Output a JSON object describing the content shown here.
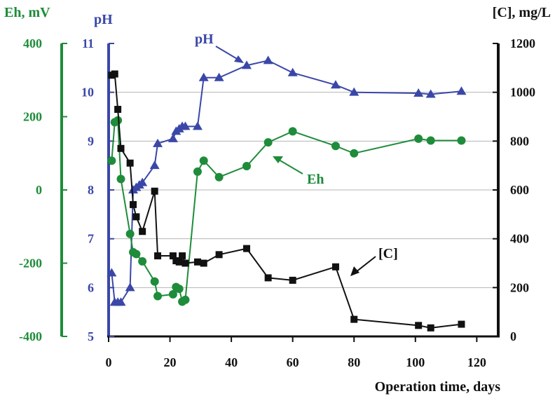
{
  "colors": {
    "ph": "#3a47a8",
    "eh": "#1e8c3a",
    "c": "#111111",
    "grid": "#b5b5b5"
  },
  "chart_data": {
    "type": "line",
    "title": "",
    "xlabel": "Operation time, days",
    "xlim": [
      0,
      127
    ],
    "x_ticks": [
      "0",
      "20",
      "40",
      "60",
      "80",
      "100",
      "120"
    ],
    "x_tick_values": [
      0,
      20,
      40,
      60,
      80,
      100,
      120
    ],
    "grid": "horizontal at right-axis ticks",
    "axes": {
      "ph": {
        "label": "pH",
        "lim": [
          5,
          11
        ],
        "ticks": [
          "5",
          "6",
          "7",
          "8",
          "9",
          "10",
          "11"
        ],
        "tick_values": [
          5,
          6,
          7,
          8,
          9,
          10,
          11
        ]
      },
      "eh": {
        "label": "Eh, mV",
        "lim": [
          -400,
          400
        ],
        "ticks": [
          "-400",
          "-200",
          "0",
          "200",
          "400"
        ],
        "tick_values": [
          -400,
          -200,
          0,
          200,
          400
        ]
      },
      "c": {
        "label": "[C], mg/L",
        "lim": [
          0,
          1200
        ],
        "ticks": [
          "0",
          "200",
          "400",
          "600",
          "800",
          "1000",
          "1200"
        ],
        "tick_values": [
          0,
          200,
          400,
          600,
          800,
          1000,
          1200
        ]
      }
    },
    "series": [
      {
        "name": "pH",
        "axis": "ph",
        "marker": "triangle",
        "color": "#3a47a8",
        "x": [
          1,
          2,
          3,
          4,
          7,
          8,
          9,
          10,
          11,
          15,
          16,
          21,
          22,
          23,
          24,
          25,
          29,
          31,
          36,
          45,
          52,
          60,
          74,
          80,
          101,
          105,
          115
        ],
        "y": [
          6.3,
          5.7,
          5.7,
          5.7,
          6.0,
          8.0,
          8.05,
          8.1,
          8.15,
          8.5,
          8.95,
          9.05,
          9.2,
          9.25,
          9.3,
          9.3,
          9.3,
          10.3,
          10.3,
          10.55,
          10.65,
          10.4,
          10.15,
          10.0,
          9.98,
          9.96,
          10.02
        ]
      },
      {
        "name": "Eh",
        "axis": "eh",
        "marker": "circle",
        "color": "#1e8c3a",
        "x": [
          1,
          2,
          3,
          4,
          7,
          8,
          9,
          11,
          15,
          16,
          21,
          22,
          23,
          24,
          25,
          29,
          31,
          36,
          45,
          52,
          60,
          74,
          80,
          101,
          105,
          115
        ],
        "y": [
          80,
          185,
          190,
          30,
          -120,
          -170,
          -175,
          -195,
          -250,
          -290,
          -285,
          -265,
          -270,
          -305,
          -300,
          50,
          80,
          35,
          65,
          130,
          160,
          120,
          100,
          140,
          135,
          135
        ]
      },
      {
        "name": "[C]",
        "axis": "c",
        "marker": "square",
        "color": "#111111",
        "x": [
          1,
          2,
          3,
          4,
          7,
          8,
          9,
          11,
          15,
          16,
          21,
          22,
          23,
          24,
          25,
          29,
          31,
          36,
          45,
          52,
          60,
          74,
          80,
          101,
          105,
          115
        ],
        "y": [
          1070,
          1075,
          930,
          770,
          710,
          540,
          490,
          430,
          595,
          330,
          330,
          310,
          305,
          330,
          300,
          305,
          300,
          335,
          360,
          240,
          230,
          285,
          70,
          45,
          35,
          50
        ]
      }
    ],
    "annotations": [
      {
        "text": "pH"
      },
      {
        "text": "Eh"
      },
      {
        "text": "[C]"
      }
    ]
  }
}
